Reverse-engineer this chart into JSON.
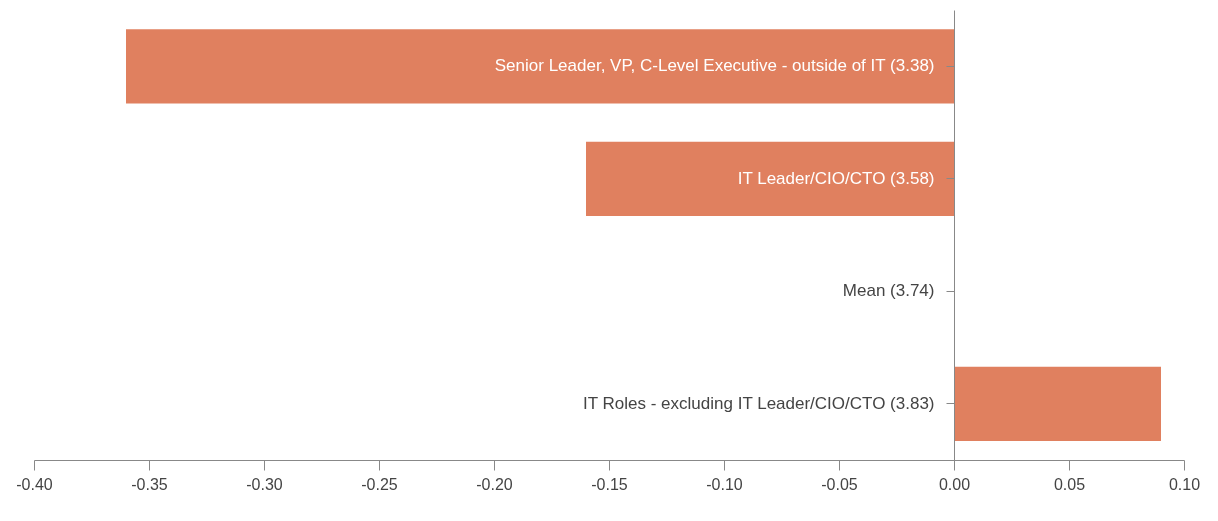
{
  "chart_data": {
    "type": "bar",
    "orientation": "horizontal",
    "categories": [
      "Senior Leader, VP, C-Level Executive - outside of IT (3.38)",
      "IT Leader/CIO/CTO (3.58)",
      "Mean (3.74)",
      "IT Roles - excluding IT Leader/CIO/CTO (3.83)"
    ],
    "values": [
      -0.36,
      -0.16,
      0,
      0.09
    ],
    "color": "#e0805f",
    "xlim": [
      -0.4,
      0.1
    ],
    "xticks": [
      {
        "value": -0.4,
        "label": "-0.40"
      },
      {
        "value": -0.35,
        "label": "-0.35"
      },
      {
        "value": -0.3,
        "label": "-0.30"
      },
      {
        "value": -0.25,
        "label": "-0.25"
      },
      {
        "value": -0.2,
        "label": "-0.20"
      },
      {
        "value": -0.15,
        "label": "-0.15"
      },
      {
        "value": -0.1,
        "label": "-0.10"
      },
      {
        "value": -0.05,
        "label": "-0.05"
      },
      {
        "value": 0,
        "label": "0.00"
      },
      {
        "value": 0.05,
        "label": "0.05"
      },
      {
        "value": 0.1,
        "label": "0.10"
      }
    ],
    "grid": false
  }
}
